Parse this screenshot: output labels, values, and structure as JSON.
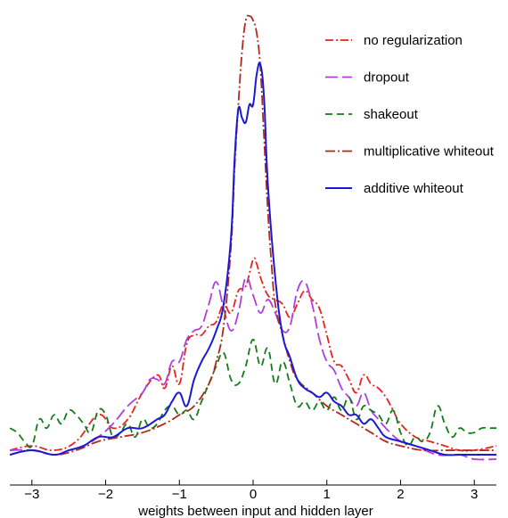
{
  "chart_data": {
    "type": "line",
    "xlabel": "weights between input and hidden layer",
    "ylabel": "",
    "title": "",
    "xlim": [
      -3.3,
      3.3
    ],
    "ylim": [
      0,
      100
    ],
    "xticks": [
      -3,
      -2,
      -1,
      0,
      1,
      2,
      3
    ],
    "grid": false,
    "legend_position": "top-right",
    "series": [
      {
        "name": "no regularization",
        "color": "#e8221e",
        "dash": "9 3 2 3",
        "x": [
          -3.3,
          -3.0,
          -2.7,
          -2.4,
          -2.1,
          -1.9,
          -1.7,
          -1.5,
          -1.3,
          -1.2,
          -1.1,
          -1.0,
          -0.9,
          -0.8,
          -0.7,
          -0.6,
          -0.5,
          -0.4,
          -0.3,
          -0.2,
          -0.1,
          0.0,
          0.05,
          0.1,
          0.2,
          0.3,
          0.4,
          0.5,
          0.6,
          0.7,
          0.8,
          0.9,
          1.0,
          1.1,
          1.2,
          1.3,
          1.4,
          1.5,
          1.6,
          1.7,
          1.8,
          1.9,
          2.0,
          2.2,
          2.4,
          2.6,
          2.8,
          3.0,
          3.3
        ],
        "y": [
          2,
          3,
          2,
          4,
          10,
          7,
          9,
          15,
          19,
          16,
          21,
          17,
          26,
          28,
          28,
          30,
          31,
          35,
          33,
          38,
          39,
          45,
          44,
          41,
          37,
          36,
          35,
          32,
          35,
          38,
          36,
          34,
          28,
          22,
          21,
          18,
          15,
          19,
          17,
          16,
          14,
          11,
          8,
          5,
          4,
          3,
          2,
          2,
          3
        ]
      },
      {
        "name": "dropout",
        "color": "#b23ee0",
        "dash": "14 5",
        "x": [
          -3.3,
          -3.0,
          -2.7,
          -2.5,
          -2.3,
          -2.1,
          -1.9,
          -1.7,
          -1.5,
          -1.4,
          -1.3,
          -1.2,
          -1.1,
          -1.0,
          -0.9,
          -0.8,
          -0.7,
          -0.6,
          -0.5,
          -0.4,
          -0.3,
          -0.2,
          -0.1,
          0.0,
          0.1,
          0.2,
          0.3,
          0.4,
          0.5,
          0.6,
          0.7,
          0.8,
          0.9,
          1.0,
          1.1,
          1.2,
          1.3,
          1.4,
          1.5,
          1.6,
          1.7,
          1.8,
          2.0,
          2.2,
          2.5,
          2.8,
          3.0,
          3.3
        ],
        "y": [
          2,
          2,
          1,
          2,
          3,
          5,
          8,
          12,
          15,
          18,
          18,
          17,
          22,
          22,
          27,
          29,
          30,
          35,
          40,
          34,
          29,
          33,
          41,
          37,
          33,
          36,
          33,
          29,
          30,
          38,
          40,
          35,
          27,
          22,
          20,
          16,
          14,
          12,
          15,
          11,
          9,
          7,
          4,
          3,
          1,
          1,
          0,
          0
        ]
      },
      {
        "name": "shakeout",
        "color": "#127d18",
        "dash": "8 5",
        "x": [
          -3.3,
          -3.2,
          -3.1,
          -3.0,
          -2.9,
          -2.8,
          -2.7,
          -2.6,
          -2.5,
          -2.4,
          -2.3,
          -2.2,
          -2.1,
          -2.0,
          -1.9,
          -1.8,
          -1.7,
          -1.6,
          -1.5,
          -1.4,
          -1.3,
          -1.2,
          -1.1,
          -1.0,
          -0.9,
          -0.8,
          -0.7,
          -0.6,
          -0.5,
          -0.4,
          -0.3,
          -0.2,
          -0.1,
          0.0,
          0.1,
          0.2,
          0.3,
          0.4,
          0.5,
          0.6,
          0.7,
          0.8,
          0.9,
          1.0,
          1.1,
          1.2,
          1.3,
          1.4,
          1.5,
          1.6,
          1.7,
          1.8,
          1.9,
          2.0,
          2.1,
          2.2,
          2.3,
          2.4,
          2.5,
          2.6,
          2.7,
          2.8,
          2.9,
          3.0,
          3.1,
          3.2,
          3.3
        ],
        "y": [
          7,
          6,
          4,
          3,
          9,
          7,
          10,
          8,
          11,
          10,
          8,
          6,
          11,
          10,
          5,
          6,
          8,
          5,
          9,
          7,
          8,
          11,
          12,
          10,
          11,
          9,
          13,
          17,
          21,
          24,
          18,
          17,
          21,
          27,
          21,
          25,
          17,
          22,
          17,
          12,
          13,
          11,
          13,
          11,
          14,
          11,
          14,
          9,
          12,
          11,
          10,
          8,
          11,
          6,
          3,
          5,
          4,
          6,
          12,
          8,
          5,
          7,
          6,
          6,
          7,
          7,
          7
        ]
      },
      {
        "name": "multiplicative whiteout",
        "color": "#b02a1c",
        "dash": "11 3 2 3",
        "x": [
          -3.3,
          -3.0,
          -2.7,
          -2.4,
          -2.1,
          -1.8,
          -1.5,
          -1.2,
          -1.0,
          -0.8,
          -0.6,
          -0.5,
          -0.4,
          -0.3,
          -0.25,
          -0.2,
          -0.15,
          -0.1,
          -0.05,
          0.0,
          0.05,
          0.1,
          0.15,
          0.2,
          0.25,
          0.3,
          0.4,
          0.5,
          0.6,
          0.8,
          1.0,
          1.2,
          1.4,
          1.6,
          1.8,
          2.0,
          2.3,
          2.6,
          2.9,
          3.3
        ],
        "y": [
          1,
          2,
          1,
          2,
          4,
          5,
          6,
          8,
          10,
          12,
          17,
          22,
          30,
          48,
          66,
          80,
          92,
          99,
          100,
          99,
          96,
          88,
          72,
          56,
          44,
          35,
          28,
          22,
          18,
          15,
          12,
          10,
          8,
          6,
          4,
          3,
          2,
          2,
          2,
          2
        ]
      },
      {
        "name": "additive whiteout",
        "color": "#1b19d6",
        "dash": "",
        "x": [
          -3.3,
          -3.0,
          -2.7,
          -2.5,
          -2.3,
          -2.1,
          -1.9,
          -1.7,
          -1.5,
          -1.3,
          -1.2,
          -1.1,
          -1.0,
          -0.9,
          -0.8,
          -0.7,
          -0.6,
          -0.5,
          -0.4,
          -0.3,
          -0.25,
          -0.2,
          -0.15,
          -0.1,
          -0.05,
          0.0,
          0.05,
          0.1,
          0.15,
          0.2,
          0.3,
          0.4,
          0.5,
          0.6,
          0.7,
          0.8,
          0.9,
          1.0,
          1.1,
          1.2,
          1.3,
          1.4,
          1.5,
          1.6,
          1.7,
          1.8,
          2.0,
          2.2,
          2.4,
          2.6,
          2.8,
          3.0,
          3.3
        ],
        "y": [
          1,
          2,
          1,
          2,
          3,
          5,
          5,
          7,
          7,
          9,
          10,
          13,
          15,
          12,
          18,
          22,
          25,
          29,
          35,
          50,
          68,
          79,
          77,
          76,
          80,
          80,
          87,
          89,
          81,
          62,
          41,
          28,
          23,
          18,
          16,
          15,
          14,
          15,
          13,
          12,
          10,
          10,
          8,
          9,
          7,
          5,
          4,
          3,
          2,
          1,
          1,
          1,
          1
        ]
      }
    ]
  }
}
